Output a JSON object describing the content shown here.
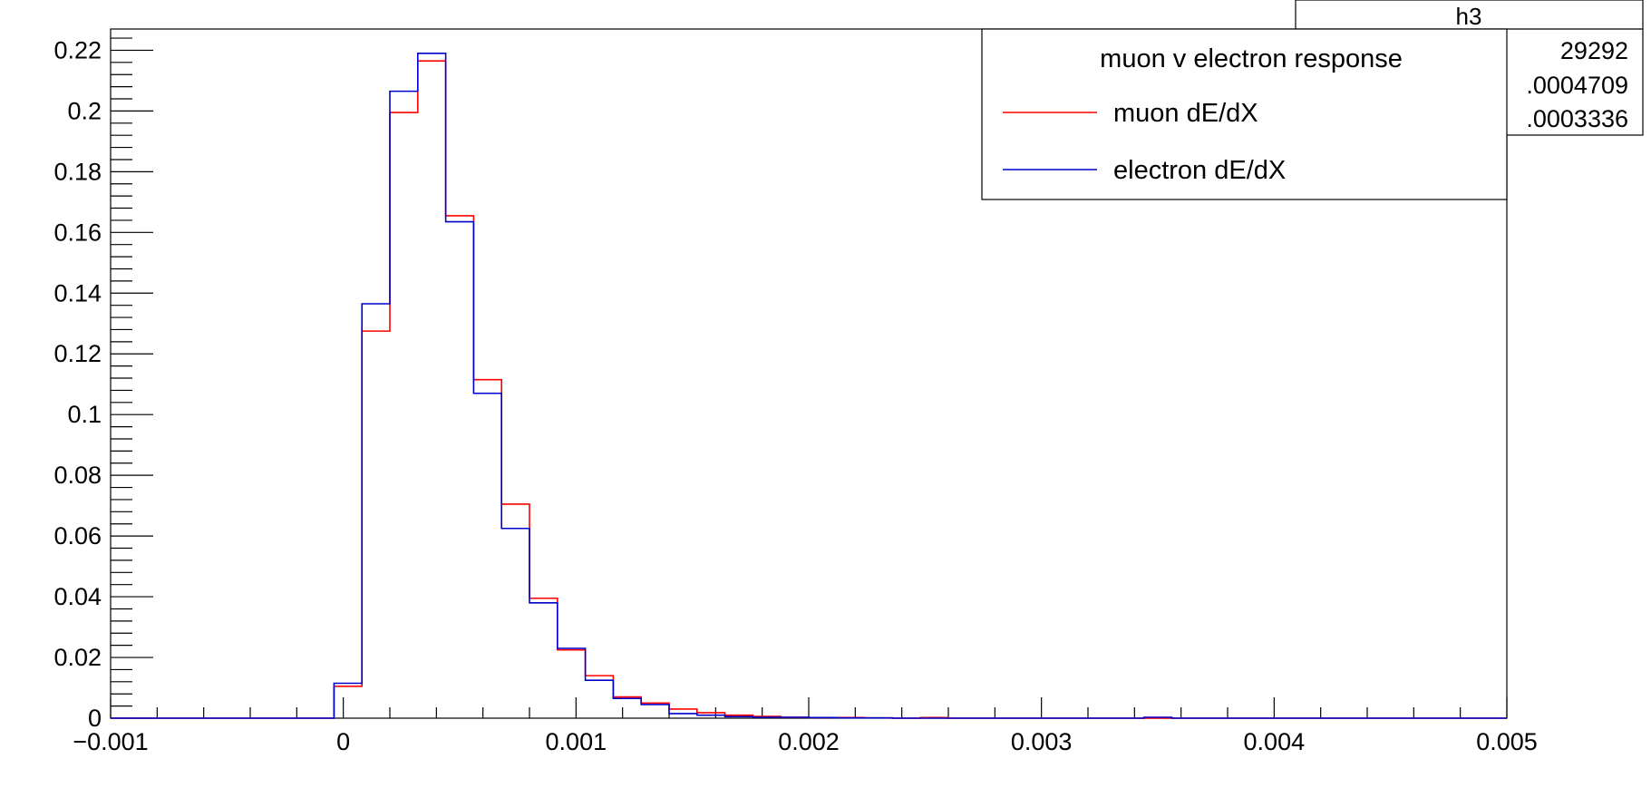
{
  "stats_box": {
    "title": "h3",
    "values": [
      "29292",
      ".0004709",
      ".0003336"
    ]
  },
  "legend": {
    "header": "muon v electron response",
    "entries": [
      "muon dE/dX",
      "electron dE/dX"
    ]
  },
  "chart_data": {
    "type": "line",
    "style": "step-histogram",
    "title": "",
    "xlabel": "",
    "ylabel": "",
    "xlim": [
      -0.001,
      0.005
    ],
    "ylim": [
      0,
      0.227
    ],
    "x_ticks": [
      -0.001,
      0,
      0.001,
      0.002,
      0.003,
      0.004,
      0.005
    ],
    "x_tick_labels": [
      "−0.001",
      "0",
      "0.001",
      "0.002",
      "0.003",
      "0.004",
      "0.005"
    ],
    "y_ticks": [
      0,
      0.02,
      0.04,
      0.06,
      0.08,
      0.1,
      0.12,
      0.14,
      0.16,
      0.18,
      0.2,
      0.22
    ],
    "y_tick_labels": [
      "0",
      "0.02",
      "0.04",
      "0.06",
      "0.08",
      "0.1",
      "0.12",
      "0.14",
      "0.16",
      "0.18",
      "0.2",
      "0.22"
    ],
    "bin_edges": [
      -0.001,
      -0.00088,
      -0.00076,
      -0.00064,
      -0.00052,
      -0.0004,
      -0.00028,
      -0.00016,
      -4e-05,
      8e-05,
      0.0002,
      0.00032,
      0.00044,
      0.00056,
      0.00068,
      0.0008,
      0.00092,
      0.00104,
      0.00116,
      0.00128,
      0.0014,
      0.00152,
      0.00164,
      0.00176,
      0.00188,
      0.002,
      0.00212,
      0.00224,
      0.00236,
      0.00248,
      0.0026,
      0.00272,
      0.00284,
      0.00296,
      0.00308,
      0.0032,
      0.00332,
      0.00344,
      0.00356,
      0.00368,
      0.0038,
      0.00392,
      0.00404,
      0.00416,
      0.00428,
      0.0044,
      0.00452,
      0.00464,
      0.00476,
      0.00488,
      0.005
    ],
    "series": [
      {
        "name": "muon dE/dX",
        "color": "#ff0000",
        "values": [
          0,
          0,
          0,
          0,
          0,
          0,
          0,
          0,
          0.0105,
          0.1275,
          0.1995,
          0.2165,
          0.1655,
          0.1115,
          0.0705,
          0.0395,
          0.0225,
          0.014,
          0.007,
          0.005,
          0.003,
          0.0018,
          0.001,
          0.0006,
          0.0003,
          0.0002,
          0.0002,
          0.0001,
          0,
          0.0002,
          0,
          0,
          0,
          0,
          0,
          0,
          0,
          0,
          0,
          0,
          0,
          0,
          0,
          0,
          0,
          0,
          0,
          0,
          0,
          0
        ]
      },
      {
        "name": "electron dE/dX",
        "color": "#0000cc",
        "values": [
          0,
          0,
          0,
          0,
          0,
          0,
          0,
          0,
          0.0115,
          0.1365,
          0.2065,
          0.219,
          0.1635,
          0.107,
          0.0625,
          0.038,
          0.023,
          0.0125,
          0.0065,
          0.0045,
          0.0015,
          0.001,
          0.0005,
          0.0003,
          0.0003,
          0.0002,
          0.0001,
          0.0001,
          0,
          0,
          0,
          0,
          0,
          0,
          0,
          0,
          0,
          0.0003,
          0,
          0,
          0,
          0,
          0,
          0,
          0,
          0,
          0,
          0,
          0,
          0
        ]
      }
    ],
    "legend_position": "top-right",
    "grid": false
  }
}
